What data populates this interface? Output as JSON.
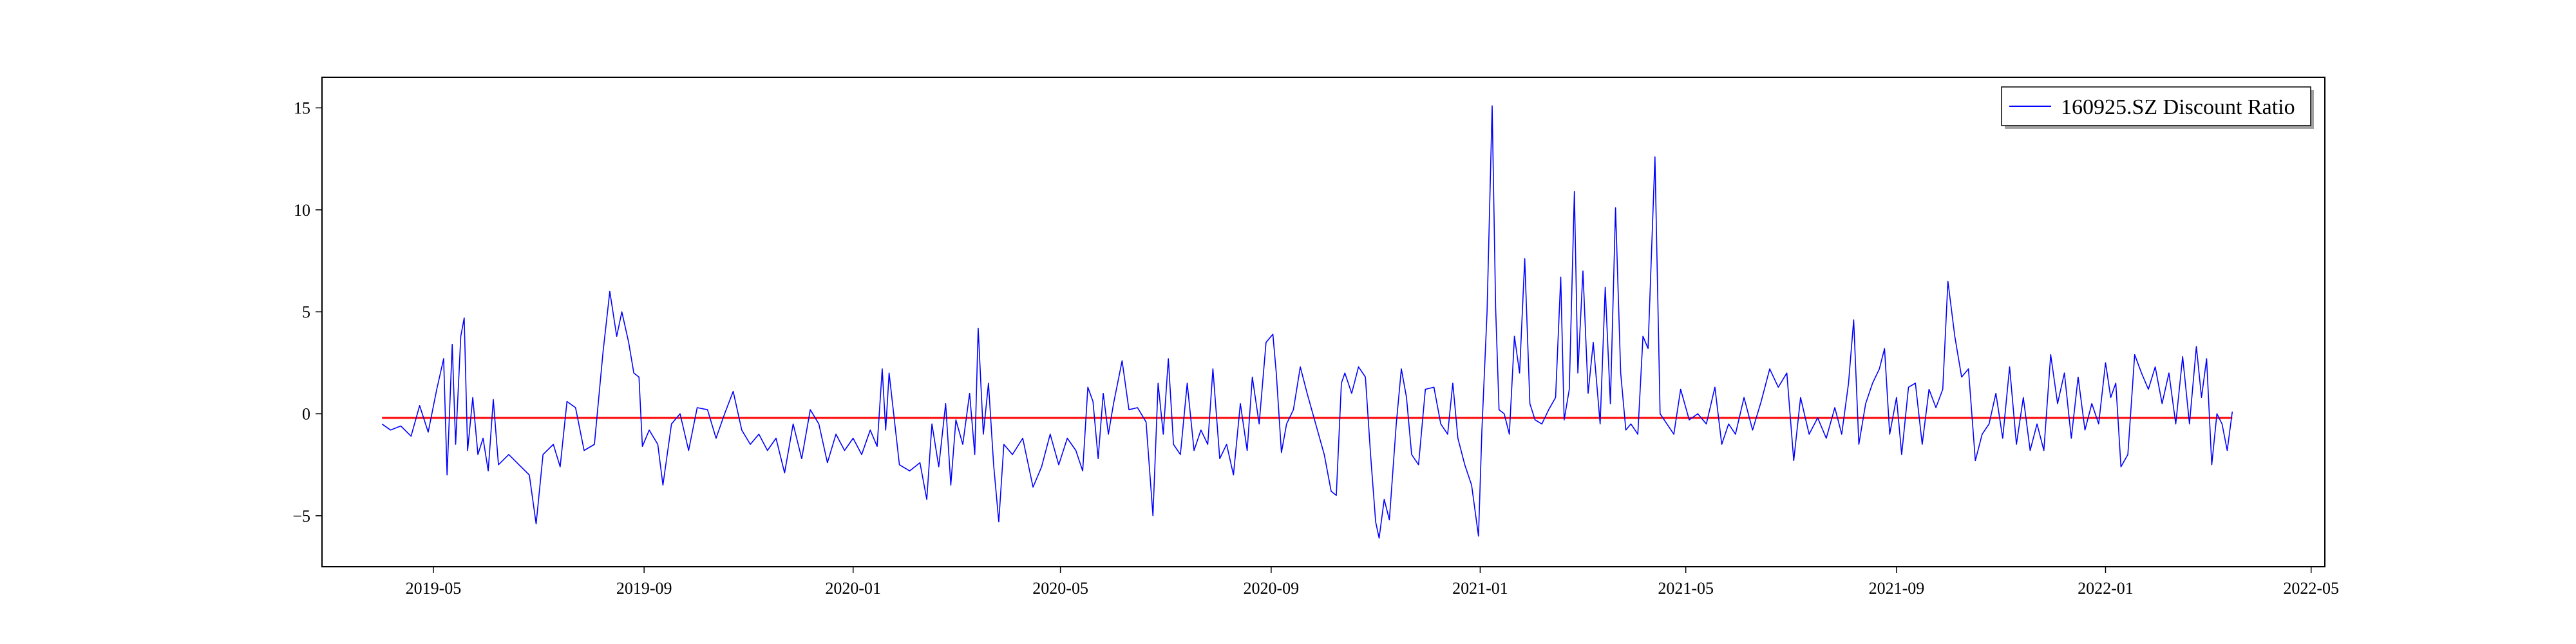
{
  "chart_data": {
    "type": "line",
    "title": "",
    "xlabel": "",
    "ylabel": "",
    "x_range": [
      "2019-02-25",
      "2022-05-09"
    ],
    "ylim": [
      -7.5,
      16.5
    ],
    "grid": false,
    "legend_position": "top-right",
    "x_ticks": [
      "2019-05",
      "2019-09",
      "2020-01",
      "2020-05",
      "2020-09",
      "2021-01",
      "2021-05",
      "2021-09",
      "2022-01",
      "2022-05"
    ],
    "y_ticks": [
      -5,
      0,
      5,
      10,
      15
    ],
    "colors": {
      "series": "#0000ff",
      "reference_line": "#ff0000"
    },
    "reference_line": {
      "y": -0.2
    },
    "series": [
      {
        "name": "160925.SZ Discount Ratio",
        "points": [
          [
            "2019-04-01",
            -0.5
          ],
          [
            "2019-04-06",
            -0.8
          ],
          [
            "2019-04-12",
            -0.6
          ],
          [
            "2019-04-18",
            -1.1
          ],
          [
            "2019-04-23",
            0.4
          ],
          [
            "2019-04-28",
            -0.9
          ],
          [
            "2019-05-03",
            1.2
          ],
          [
            "2019-05-07",
            2.7
          ],
          [
            "2019-05-09",
            -3.0
          ],
          [
            "2019-05-12",
            3.4
          ],
          [
            "2019-05-14",
            -1.5
          ],
          [
            "2019-05-17",
            3.8
          ],
          [
            "2019-05-19",
            4.7
          ],
          [
            "2019-05-21",
            -1.8
          ],
          [
            "2019-05-24",
            0.8
          ],
          [
            "2019-05-27",
            -2.0
          ],
          [
            "2019-05-30",
            -1.2
          ],
          [
            "2019-06-02",
            -2.8
          ],
          [
            "2019-06-05",
            0.7
          ],
          [
            "2019-06-08",
            -2.5
          ],
          [
            "2019-06-14",
            -2.0
          ],
          [
            "2019-06-20",
            -2.5
          ],
          [
            "2019-06-26",
            -3.0
          ],
          [
            "2019-06-30",
            -5.4
          ],
          [
            "2019-07-04",
            -2.0
          ],
          [
            "2019-07-10",
            -1.5
          ],
          [
            "2019-07-14",
            -2.6
          ],
          [
            "2019-07-18",
            0.6
          ],
          [
            "2019-07-23",
            0.3
          ],
          [
            "2019-07-28",
            -1.8
          ],
          [
            "2019-08-03",
            -1.5
          ],
          [
            "2019-08-08",
            3.0
          ],
          [
            "2019-08-12",
            6.0
          ],
          [
            "2019-08-16",
            3.8
          ],
          [
            "2019-08-19",
            5.0
          ],
          [
            "2019-08-23",
            3.5
          ],
          [
            "2019-08-26",
            2.0
          ],
          [
            "2019-08-29",
            1.8
          ],
          [
            "2019-08-31",
            -1.6
          ],
          [
            "2019-09-04",
            -0.8
          ],
          [
            "2019-09-09",
            -1.5
          ],
          [
            "2019-09-12",
            -3.5
          ],
          [
            "2019-09-17",
            -0.5
          ],
          [
            "2019-09-22",
            0.0
          ],
          [
            "2019-09-27",
            -1.8
          ],
          [
            "2019-10-02",
            0.3
          ],
          [
            "2019-10-08",
            0.2
          ],
          [
            "2019-10-13",
            -1.2
          ],
          [
            "2019-10-18",
            0.0
          ],
          [
            "2019-10-23",
            1.1
          ],
          [
            "2019-10-28",
            -0.8
          ],
          [
            "2019-11-02",
            -1.5
          ],
          [
            "2019-11-07",
            -1.0
          ],
          [
            "2019-11-12",
            -1.8
          ],
          [
            "2019-11-17",
            -1.2
          ],
          [
            "2019-11-22",
            -2.9
          ],
          [
            "2019-11-27",
            -0.5
          ],
          [
            "2019-12-02",
            -2.2
          ],
          [
            "2019-12-07",
            0.2
          ],
          [
            "2019-12-12",
            -0.5
          ],
          [
            "2019-12-17",
            -2.4
          ],
          [
            "2019-12-22",
            -1.0
          ],
          [
            "2019-12-27",
            -1.8
          ],
          [
            "2020-01-01",
            -1.2
          ],
          [
            "2020-01-06",
            -2.0
          ],
          [
            "2020-01-11",
            -0.8
          ],
          [
            "2020-01-15",
            -1.6
          ],
          [
            "2020-01-18",
            2.2
          ],
          [
            "2020-01-20",
            -0.8
          ],
          [
            "2020-01-22",
            2.0
          ],
          [
            "2020-01-28",
            -2.5
          ],
          [
            "2020-02-03",
            -2.8
          ],
          [
            "2020-02-09",
            -2.4
          ],
          [
            "2020-02-13",
            -4.2
          ],
          [
            "2020-02-16",
            -0.5
          ],
          [
            "2020-02-20",
            -2.6
          ],
          [
            "2020-02-24",
            0.5
          ],
          [
            "2020-02-27",
            -3.5
          ],
          [
            "2020-03-01",
            -0.3
          ],
          [
            "2020-03-05",
            -1.5
          ],
          [
            "2020-03-09",
            1.0
          ],
          [
            "2020-03-12",
            -2.0
          ],
          [
            "2020-03-14",
            4.2
          ],
          [
            "2020-03-17",
            -1.0
          ],
          [
            "2020-03-20",
            1.5
          ],
          [
            "2020-03-23",
            -2.5
          ],
          [
            "2020-03-26",
            -5.3
          ],
          [
            "2020-03-29",
            -1.5
          ],
          [
            "2020-04-03",
            -2.0
          ],
          [
            "2020-04-09",
            -1.2
          ],
          [
            "2020-04-15",
            -3.6
          ],
          [
            "2020-04-20",
            -2.6
          ],
          [
            "2020-04-25",
            -1.0
          ],
          [
            "2020-04-30",
            -2.5
          ],
          [
            "2020-05-05",
            -1.2
          ],
          [
            "2020-05-10",
            -1.8
          ],
          [
            "2020-05-14",
            -2.8
          ],
          [
            "2020-05-17",
            1.3
          ],
          [
            "2020-05-20",
            0.6
          ],
          [
            "2020-05-23",
            -2.2
          ],
          [
            "2020-05-26",
            1.0
          ],
          [
            "2020-05-29",
            -1.0
          ],
          [
            "2020-06-01",
            0.5
          ],
          [
            "2020-06-06",
            2.6
          ],
          [
            "2020-06-10",
            0.2
          ],
          [
            "2020-06-15",
            0.3
          ],
          [
            "2020-06-20",
            -0.4
          ],
          [
            "2020-06-24",
            -5.0
          ],
          [
            "2020-06-27",
            1.5
          ],
          [
            "2020-06-30",
            -1.0
          ],
          [
            "2020-07-03",
            2.7
          ],
          [
            "2020-07-06",
            -1.5
          ],
          [
            "2020-07-10",
            -2.0
          ],
          [
            "2020-07-14",
            1.5
          ],
          [
            "2020-07-18",
            -1.8
          ],
          [
            "2020-07-22",
            -0.8
          ],
          [
            "2020-07-26",
            -1.5
          ],
          [
            "2020-07-29",
            2.2
          ],
          [
            "2020-08-02",
            -2.2
          ],
          [
            "2020-08-06",
            -1.5
          ],
          [
            "2020-08-10",
            -3.0
          ],
          [
            "2020-08-14",
            0.5
          ],
          [
            "2020-08-18",
            -1.8
          ],
          [
            "2020-08-21",
            1.8
          ],
          [
            "2020-08-25",
            -0.5
          ],
          [
            "2020-08-29",
            3.5
          ],
          [
            "2020-09-02",
            3.9
          ],
          [
            "2020-09-04",
            2.0
          ],
          [
            "2020-09-07",
            -1.9
          ],
          [
            "2020-09-10",
            -0.5
          ],
          [
            "2020-09-14",
            0.2
          ],
          [
            "2020-09-18",
            2.3
          ],
          [
            "2020-09-22",
            1.0
          ],
          [
            "2020-09-27",
            -0.5
          ],
          [
            "2020-10-02",
            -2.0
          ],
          [
            "2020-10-06",
            -3.8
          ],
          [
            "2020-10-09",
            -4.0
          ],
          [
            "2020-10-12",
            1.5
          ],
          [
            "2020-10-14",
            2.0
          ],
          [
            "2020-10-18",
            1.0
          ],
          [
            "2020-10-22",
            2.3
          ],
          [
            "2020-10-26",
            1.8
          ],
          [
            "2020-10-29",
            -2.0
          ],
          [
            "2020-11-01",
            -5.3
          ],
          [
            "2020-11-03",
            -6.1
          ],
          [
            "2020-11-06",
            -4.2
          ],
          [
            "2020-11-09",
            -5.2
          ],
          [
            "2020-11-13",
            -0.5
          ],
          [
            "2020-11-16",
            2.2
          ],
          [
            "2020-11-19",
            0.8
          ],
          [
            "2020-11-22",
            -2.0
          ],
          [
            "2020-11-26",
            -2.5
          ],
          [
            "2020-11-30",
            1.2
          ],
          [
            "2020-12-05",
            1.3
          ],
          [
            "2020-12-09",
            -0.5
          ],
          [
            "2020-12-13",
            -1.0
          ],
          [
            "2020-12-16",
            1.5
          ],
          [
            "2020-12-19",
            -1.2
          ],
          [
            "2020-12-23",
            -2.5
          ],
          [
            "2020-12-27",
            -3.5
          ],
          [
            "2020-12-31",
            -6.0
          ],
          [
            "2021-01-02",
            -0.8
          ],
          [
            "2021-01-05",
            5.0
          ],
          [
            "2021-01-08",
            15.1
          ],
          [
            "2021-01-10",
            5.2
          ],
          [
            "2021-01-12",
            0.2
          ],
          [
            "2021-01-15",
            0.0
          ],
          [
            "2021-01-18",
            -1.0
          ],
          [
            "2021-01-21",
            3.8
          ],
          [
            "2021-01-24",
            2.0
          ],
          [
            "2021-01-27",
            7.6
          ],
          [
            "2021-01-30",
            0.5
          ],
          [
            "2021-02-02",
            -0.3
          ],
          [
            "2021-02-06",
            -0.5
          ],
          [
            "2021-02-10",
            0.2
          ],
          [
            "2021-02-14",
            0.8
          ],
          [
            "2021-02-17",
            6.7
          ],
          [
            "2021-02-19",
            -0.3
          ],
          [
            "2021-02-22",
            1.2
          ],
          [
            "2021-02-25",
            10.9
          ],
          [
            "2021-02-27",
            2.0
          ],
          [
            "2021-03-02",
            7.0
          ],
          [
            "2021-03-05",
            1.0
          ],
          [
            "2021-03-08",
            3.5
          ],
          [
            "2021-03-12",
            -0.5
          ],
          [
            "2021-03-15",
            6.2
          ],
          [
            "2021-03-18",
            0.5
          ],
          [
            "2021-03-21",
            10.1
          ],
          [
            "2021-03-24",
            2.0
          ],
          [
            "2021-03-27",
            -0.8
          ],
          [
            "2021-03-30",
            -0.5
          ],
          [
            "2021-04-03",
            -1.0
          ],
          [
            "2021-04-06",
            3.8
          ],
          [
            "2021-04-09",
            3.2
          ],
          [
            "2021-04-13",
            12.6
          ],
          [
            "2021-04-16",
            0.0
          ],
          [
            "2021-04-20",
            -0.5
          ],
          [
            "2021-04-24",
            -1.0
          ],
          [
            "2021-04-28",
            1.2
          ],
          [
            "2021-05-03",
            -0.3
          ],
          [
            "2021-05-08",
            0.0
          ],
          [
            "2021-05-13",
            -0.5
          ],
          [
            "2021-05-18",
            1.3
          ],
          [
            "2021-05-22",
            -1.5
          ],
          [
            "2021-05-26",
            -0.5
          ],
          [
            "2021-05-30",
            -1.0
          ],
          [
            "2021-06-04",
            0.8
          ],
          [
            "2021-06-09",
            -0.8
          ],
          [
            "2021-06-14",
            0.6
          ],
          [
            "2021-06-19",
            2.2
          ],
          [
            "2021-06-24",
            1.3
          ],
          [
            "2021-06-29",
            2.0
          ],
          [
            "2021-07-03",
            -2.3
          ],
          [
            "2021-07-07",
            0.8
          ],
          [
            "2021-07-12",
            -1.0
          ],
          [
            "2021-07-17",
            -0.2
          ],
          [
            "2021-07-22",
            -1.2
          ],
          [
            "2021-07-27",
            0.3
          ],
          [
            "2021-07-31",
            -1.0
          ],
          [
            "2021-08-04",
            1.5
          ],
          [
            "2021-08-07",
            4.6
          ],
          [
            "2021-08-10",
            -1.5
          ],
          [
            "2021-08-14",
            0.5
          ],
          [
            "2021-08-18",
            1.5
          ],
          [
            "2021-08-22",
            2.2
          ],
          [
            "2021-08-25",
            3.2
          ],
          [
            "2021-08-28",
            -1.0
          ],
          [
            "2021-09-01",
            0.8
          ],
          [
            "2021-09-04",
            -2.0
          ],
          [
            "2021-09-08",
            1.3
          ],
          [
            "2021-09-12",
            1.5
          ],
          [
            "2021-09-16",
            -1.5
          ],
          [
            "2021-09-20",
            1.2
          ],
          [
            "2021-09-24",
            0.3
          ],
          [
            "2021-09-28",
            1.2
          ],
          [
            "2021-10-01",
            6.5
          ],
          [
            "2021-10-05",
            3.8
          ],
          [
            "2021-10-09",
            1.8
          ],
          [
            "2021-10-13",
            2.2
          ],
          [
            "2021-10-17",
            -2.3
          ],
          [
            "2021-10-21",
            -1.0
          ],
          [
            "2021-10-25",
            -0.5
          ],
          [
            "2021-10-29",
            1.0
          ],
          [
            "2021-11-02",
            -1.2
          ],
          [
            "2021-11-06",
            2.3
          ],
          [
            "2021-11-10",
            -1.5
          ],
          [
            "2021-11-14",
            0.8
          ],
          [
            "2021-11-18",
            -1.8
          ],
          [
            "2021-11-22",
            -0.5
          ],
          [
            "2021-11-26",
            -1.8
          ],
          [
            "2021-11-30",
            2.9
          ],
          [
            "2021-12-04",
            0.5
          ],
          [
            "2021-12-08",
            2.0
          ],
          [
            "2021-12-12",
            -1.2
          ],
          [
            "2021-12-16",
            1.8
          ],
          [
            "2021-12-20",
            -0.8
          ],
          [
            "2021-12-24",
            0.5
          ],
          [
            "2021-12-28",
            -0.5
          ],
          [
            "2022-01-01",
            2.5
          ],
          [
            "2022-01-04",
            0.8
          ],
          [
            "2022-01-07",
            1.5
          ],
          [
            "2022-01-10",
            -2.6
          ],
          [
            "2022-01-14",
            -2.0
          ],
          [
            "2022-01-18",
            2.9
          ],
          [
            "2022-01-22",
            2.0
          ],
          [
            "2022-01-26",
            1.2
          ],
          [
            "2022-01-30",
            2.3
          ],
          [
            "2022-02-03",
            0.5
          ],
          [
            "2022-02-07",
            2.0
          ],
          [
            "2022-02-11",
            -0.5
          ],
          [
            "2022-02-15",
            2.8
          ],
          [
            "2022-02-19",
            -0.5
          ],
          [
            "2022-02-23",
            3.3
          ],
          [
            "2022-02-26",
            0.8
          ],
          [
            "2022-03-01",
            2.7
          ],
          [
            "2022-03-04",
            -2.5
          ],
          [
            "2022-03-07",
            0.0
          ],
          [
            "2022-03-10",
            -0.5
          ],
          [
            "2022-03-13",
            -1.8
          ],
          [
            "2022-03-16",
            0.1
          ]
        ]
      }
    ]
  }
}
